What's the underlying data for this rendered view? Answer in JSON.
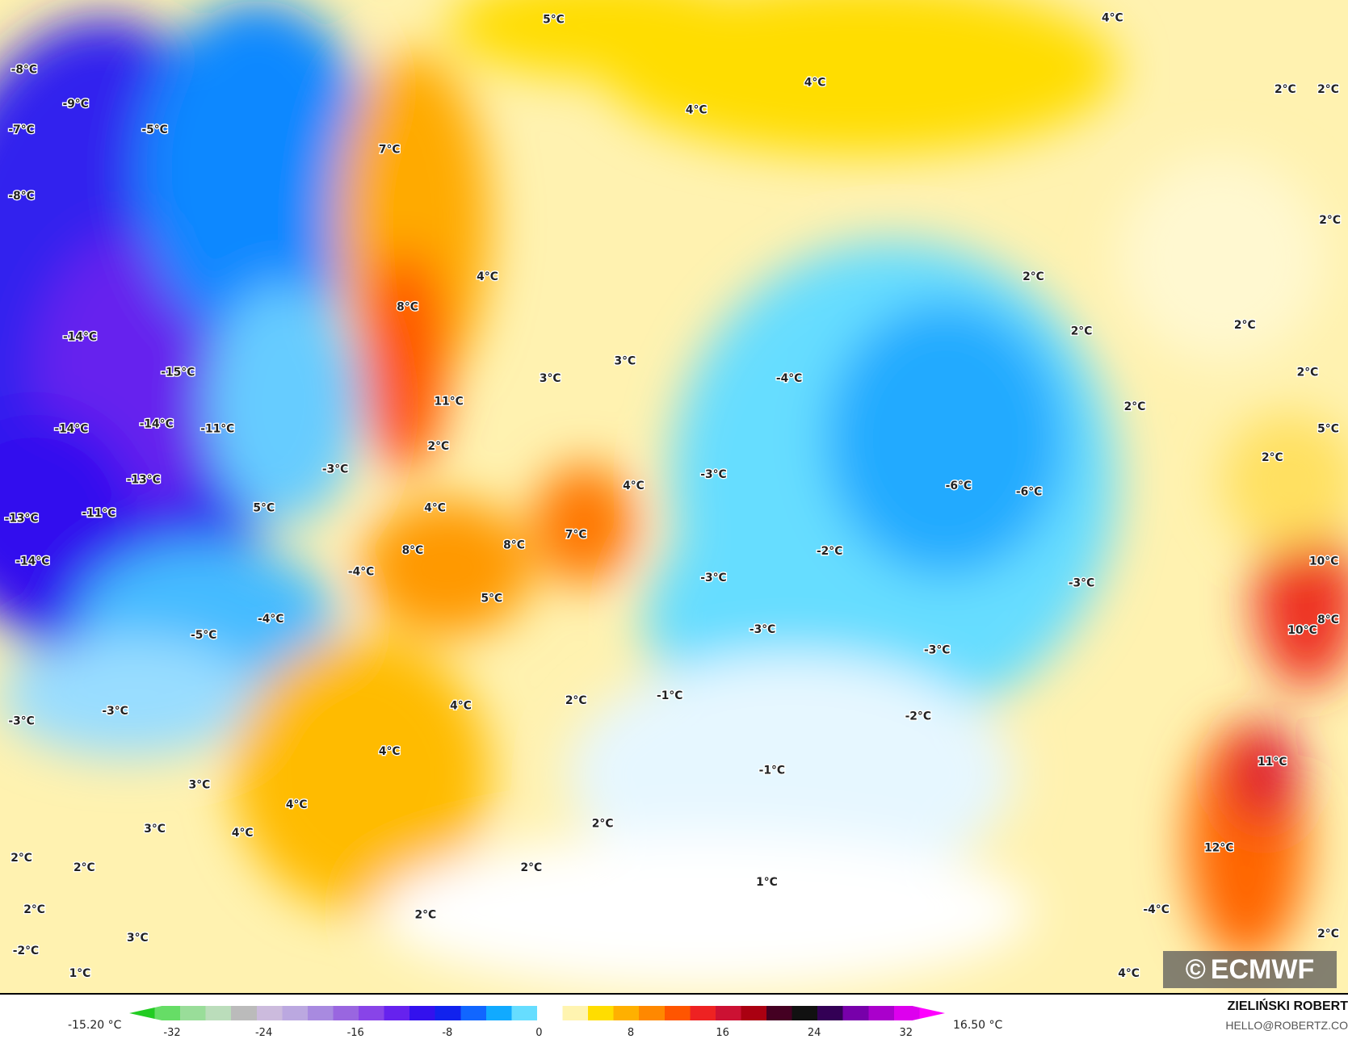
{
  "map": {
    "labels": [
      "-8°C",
      "-9°C",
      "-7°C",
      "-5°C",
      "-8°C",
      "-14°C",
      "-15°C",
      "-14°C",
      "-14°C",
      "-11°C",
      "-13°C",
      "-11°C",
      "-13°C",
      "-14°C",
      "-3°C",
      "5°C",
      "-4°C",
      "-4°C",
      "-5°C",
      "-3°C",
      "-3°C",
      "3°C",
      "3°C",
      "4°C",
      "4°C",
      "2°C",
      "2°C",
      "2°C",
      "3°C",
      "-2°C",
      "1°C",
      "5°C",
      "4°C",
      "4°C",
      "4°C",
      "2°C",
      "2°C",
      "7°C",
      "8°C",
      "4°C",
      "3°C",
      "3°C",
      "11°C",
      "2°C",
      "4°C",
      "8°C",
      "8°C",
      "5°C",
      "7°C",
      "4°C",
      "-3°C",
      "-4°C",
      "-2°C",
      "-3°C",
      "-3°C",
      "-3°C",
      "-6°C",
      "-6°C",
      "-3°C",
      "-1°C",
      "2°C",
      "4°C",
      "4°C",
      "-2°C",
      "-1°C",
      "2°C",
      "2°C",
      "2°C",
      "1°C",
      "2°C",
      "2°C",
      "2°C",
      "2°C",
      "2°C",
      "5°C",
      "2°C",
      "10°C",
      "8°C",
      "10°C",
      "11°C",
      "12°C",
      "-4°C",
      "2°C",
      "4°C",
      "2°C"
    ]
  },
  "colorbar": {
    "min_label": "-15.20 °C",
    "max_label": "16.50 °C",
    "ticks": [
      "-32",
      "-24",
      "-16",
      "-8",
      "0",
      "8",
      "16",
      "24",
      "32"
    ],
    "colors": [
      "#22cc22",
      "#66dd66",
      "#99dd99",
      "#bbddbb",
      "#bbbbbb",
      "#ccbbdd",
      "#bba8e0",
      "#a88ae0",
      "#9966e0",
      "#8844e8",
      "#6622ee",
      "#3311ee",
      "#1122ee",
      "#1166ff",
      "#11aaff",
      "#66ddff",
      "#ffffff",
      "#fff4b0",
      "#ffdd00",
      "#ffb000",
      "#ff8800",
      "#ff5500",
      "#ee2222",
      "#cc1133",
      "#aa0011",
      "#440022",
      "#111111",
      "#330055",
      "#7700aa",
      "#aa00cc",
      "#dd00ee",
      "#ff00ff"
    ]
  },
  "logo": {
    "text": "ECMWF"
  },
  "credit": {
    "name": "ZIELIŃSKI ROBERT",
    "email": "HELLO@ROBERTZ.CO"
  }
}
